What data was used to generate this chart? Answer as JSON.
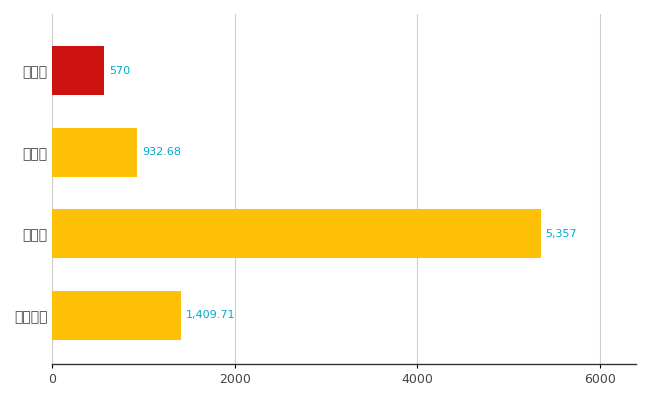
{
  "categories": [
    "男鹿市",
    "県平均",
    "県最大",
    "全国平均"
  ],
  "values": [
    570,
    932.68,
    5357,
    1409.71
  ],
  "labels": [
    "570",
    "932.68",
    "5,357",
    "1,409.71"
  ],
  "bar_colors": [
    "#CC1111",
    "#FFC107",
    "#FFC107",
    "#FFC107"
  ],
  "xlim": [
    0,
    6400
  ],
  "background_color": "#ffffff",
  "grid_color": "#cccccc",
  "label_color": "#00AACC",
  "tick_label_color": "#444444",
  "bar_height": 0.6,
  "figsize": [
    6.5,
    4.0
  ],
  "dpi": 100
}
